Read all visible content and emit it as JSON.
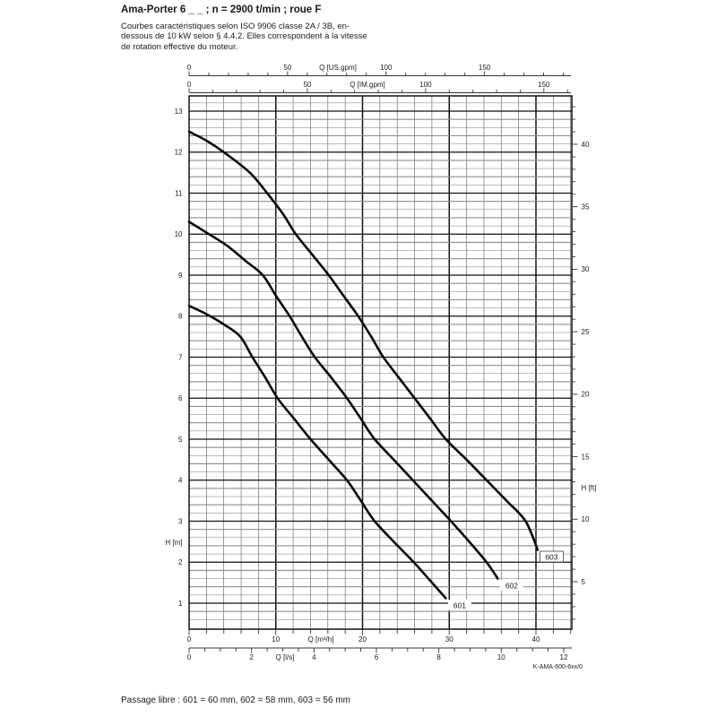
{
  "header": {
    "title": "Ama-Porter 6 _ _ ; n = 2900 t/min ; roue F",
    "subtitle_lines": [
      "Courbes caractéristiques selon ISO 9906 classe 2A / 3B, en-",
      "dessous de 10 kW selon § 4.4.2. Elles correspondent à la vitesse",
      "de rotation effective du moteur."
    ]
  },
  "footer": {
    "passage_libre": "Passage libre : 601 = 60 mm, 602 = 58 mm, 603 = 56 mm"
  },
  "chart_data": {
    "type": "line",
    "title": "",
    "xlabel": "Q [m³/h]",
    "ylabel": "H [m]",
    "x_range_m3h": [
      0,
      44
    ],
    "y_range_m": [
      0.4,
      13.4
    ],
    "grid": "on",
    "doc_code": "K-AMA-600-6xx/0",
    "x_axes": [
      {
        "id": "us",
        "label": "Q [US.gpm]",
        "units_per_m3h": 4.4029,
        "labeled_ticks": [
          0,
          50,
          100,
          150
        ],
        "minor_step": 10,
        "max_tick": 190
      },
      {
        "id": "im",
        "label": "Q [IM.gpm]",
        "units_per_m3h": 3.6662,
        "labeled_ticks": [
          0,
          50,
          100,
          150
        ],
        "minor_step": 10,
        "max_tick": 160
      },
      {
        "id": "m3h",
        "label": "Q [m³/h]",
        "units_per_m3h": 1,
        "labeled_ticks": [
          0,
          10,
          20,
          30,
          40
        ],
        "minor_step": 2,
        "max_tick": 44
      },
      {
        "id": "ls",
        "label": "Q [l/s]",
        "units_per_m3h": 0.27778,
        "labeled_ticks": [
          0,
          2,
          4,
          6,
          8,
          10,
          12
        ],
        "minor_step": 0.5,
        "max_tick": 12
      }
    ],
    "y_axes": [
      {
        "id": "m",
        "label": "H [m]",
        "labeled_ticks": [
          1,
          2,
          3,
          4,
          5,
          6,
          7,
          8,
          9,
          10,
          11,
          12,
          13
        ],
        "minor_step": 0.2
      },
      {
        "id": "ft",
        "label": "H [ft]",
        "labeled_ticks": [
          5,
          10,
          15,
          20,
          25,
          30,
          35,
          40
        ],
        "minor_step": 1,
        "min_tick": 2,
        "max_tick": 43,
        "ft_per_m": 3.2808
      }
    ],
    "series": [
      {
        "name": "601",
        "label_boxed": false,
        "points": [
          [
            0,
            8.25
          ],
          [
            2,
            8.05
          ],
          [
            4,
            7.8
          ],
          [
            5.9,
            7.5
          ],
          [
            7.3,
            7.0
          ],
          [
            8.8,
            6.5
          ],
          [
            10.2,
            6.0
          ],
          [
            12.1,
            5.5
          ],
          [
            14,
            5.0
          ],
          [
            16.1,
            4.5
          ],
          [
            18.2,
            4.0
          ],
          [
            19.8,
            3.5
          ],
          [
            21.4,
            3.0
          ],
          [
            23.6,
            2.5
          ],
          [
            25.9,
            2.0
          ],
          [
            27.8,
            1.55
          ],
          [
            29.6,
            1.12
          ]
        ]
      },
      {
        "name": "602",
        "label_boxed": false,
        "points": [
          [
            0,
            10.3
          ],
          [
            2.3,
            10.0
          ],
          [
            4.5,
            9.7
          ],
          [
            6.5,
            9.35
          ],
          [
            8.5,
            9.0
          ],
          [
            10,
            8.5
          ],
          [
            11.6,
            8.0
          ],
          [
            13,
            7.5
          ],
          [
            14.5,
            7.0
          ],
          [
            16.4,
            6.5
          ],
          [
            18.2,
            6.0
          ],
          [
            19.8,
            5.5
          ],
          [
            21.4,
            5.0
          ],
          [
            23.6,
            4.5
          ],
          [
            25.8,
            4.0
          ],
          [
            28,
            3.5
          ],
          [
            30.2,
            3.0
          ],
          [
            32.3,
            2.5
          ],
          [
            34.3,
            2.0
          ],
          [
            35.6,
            1.6
          ]
        ]
      },
      {
        "name": "603",
        "label_boxed": true,
        "points": [
          [
            0,
            12.5
          ],
          [
            2,
            12.28
          ],
          [
            4,
            12.0
          ],
          [
            7,
            11.5
          ],
          [
            9,
            11.0
          ],
          [
            10.8,
            10.5
          ],
          [
            12.3,
            10.0
          ],
          [
            14.2,
            9.5
          ],
          [
            16.1,
            9.0
          ],
          [
            17.8,
            8.5
          ],
          [
            19.5,
            8.0
          ],
          [
            21,
            7.5
          ],
          [
            22.4,
            7.0
          ],
          [
            24.2,
            6.5
          ],
          [
            26,
            6.0
          ],
          [
            27.8,
            5.5
          ],
          [
            29.6,
            5.0
          ],
          [
            32,
            4.5
          ],
          [
            34.3,
            4.0
          ],
          [
            36.6,
            3.5
          ],
          [
            38.8,
            3.0
          ],
          [
            40.2,
            2.3
          ]
        ]
      }
    ],
    "colors": {
      "curve": "#0a0a0a",
      "grid_major": "#111111",
      "grid_minor_dark": "#787878",
      "grid_minor_gray": "#8f8f8f",
      "axis": "#333333",
      "doc_code_text": "#8a8a8a"
    }
  }
}
